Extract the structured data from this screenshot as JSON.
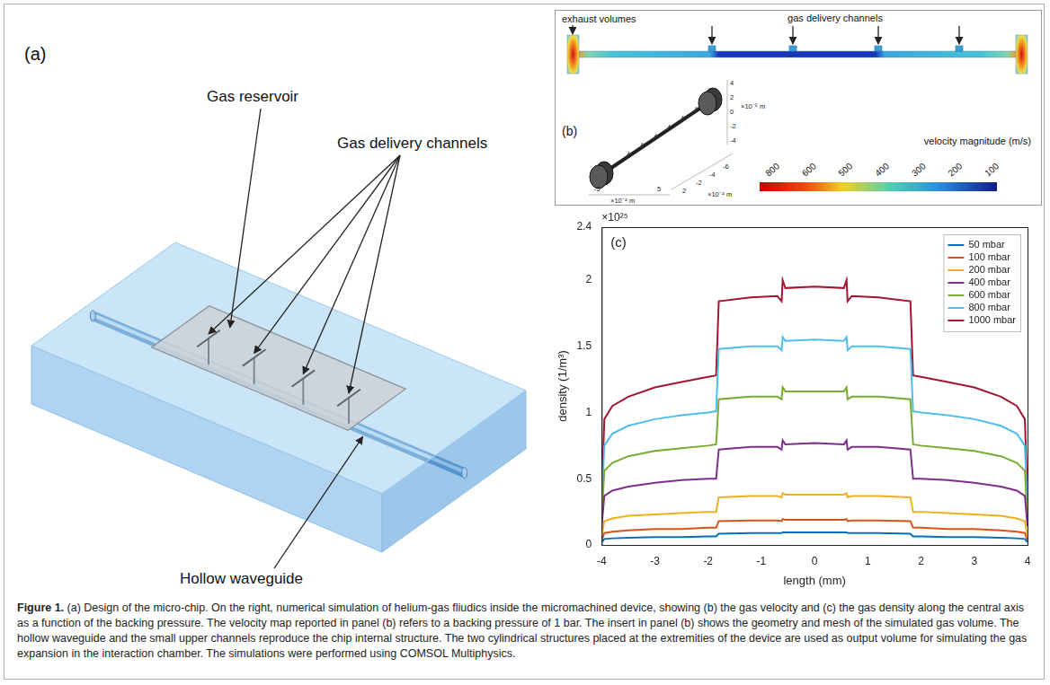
{
  "panel_a": {
    "letter": "(a)",
    "gas_reservoir": "Gas reservoir",
    "gas_delivery_channels": "Gas delivery channels",
    "hollow_waveguide": "Hollow waveguide"
  },
  "panel_b": {
    "letter": "(b)",
    "exhaust_volumes": "exhaust volumes",
    "gas_delivery_channels": "gas delivery channels",
    "colorbar": {
      "title": "velocity magnitude (m/s)",
      "ticks": [
        800,
        600,
        500,
        400,
        300,
        200,
        100
      ]
    },
    "inset": {
      "vertical_ticks": [
        "4",
        "2",
        "0",
        "-2",
        "-4"
      ],
      "vertical_unit": "×10⁻⁵ m",
      "depth_ticks": [
        "2",
        "-2",
        "-4",
        "-6"
      ],
      "depth_unit": "×10⁻⁴ m",
      "horizontal_ticks": [
        "-5",
        "5"
      ],
      "horizontal_unit": "×10⁻⁴ m"
    }
  },
  "caption": {
    "label": "Figure 1.",
    "text": "(a) Design of the micro-chip. On the right, numerical simulation of helium-gas fliudics inside the micromachined device, showing (b) the gas velocity and (c) the gas density along the central axis as a function of the backing pressure. The velocity map reported in panel (b) refers to a backing pressure of 1 bar. The insert in panel (b) shows the geometry and mesh of the simulated gas volume. The hollow waveguide and the small upper channels reproduce the chip internal structure. The two cylindrical structures placed at the extremities of the device are used as output volume for simulating the gas expansion in the interaction chamber. The simulations were performed using COMSOL Multiphysics."
  },
  "chart_data": {
    "type": "line",
    "panel_letter": "(c)",
    "x_label": "length (mm)",
    "y_label": "density (1/m³)",
    "y_multiplier": "×10²⁵",
    "x": [
      -4,
      -3.95,
      -3.8,
      -3.5,
      -3,
      -2.5,
      -2,
      -1.85,
      -1.8,
      -1.2,
      -0.7,
      -0.62,
      -0.6,
      -0.55,
      0,
      0.55,
      0.6,
      0.62,
      0.7,
      1.2,
      1.8,
      1.85,
      2,
      2.5,
      3,
      3.5,
      3.8,
      3.95,
      4
    ],
    "xlim": [
      -4,
      4
    ],
    "xticks": [
      -4,
      -3,
      -2,
      -1,
      0,
      1,
      2,
      3,
      4
    ],
    "ylim": [
      0,
      2.4
    ],
    "yticks": [
      0,
      0.5,
      1,
      1.5,
      2,
      2.4
    ],
    "grid": false,
    "legend": "upper right",
    "series": [
      {
        "name": "50 mbar",
        "color": "#0072bd",
        "values": [
          0.02,
          0.045,
          0.05,
          0.055,
          0.06,
          0.06,
          0.065,
          0.065,
          0.085,
          0.09,
          0.09,
          0.09,
          0.095,
          0.095,
          0.095,
          0.095,
          0.095,
          0.09,
          0.09,
          0.09,
          0.085,
          0.065,
          0.065,
          0.06,
          0.06,
          0.055,
          0.05,
          0.045,
          0.02
        ]
      },
      {
        "name": "100 mbar",
        "color": "#d95319",
        "values": [
          0.035,
          0.09,
          0.1,
          0.11,
          0.12,
          0.12,
          0.13,
          0.13,
          0.18,
          0.185,
          0.185,
          0.18,
          0.195,
          0.19,
          0.19,
          0.19,
          0.195,
          0.18,
          0.185,
          0.185,
          0.18,
          0.13,
          0.13,
          0.12,
          0.12,
          0.11,
          0.1,
          0.09,
          0.035
        ]
      },
      {
        "name": "200 mbar",
        "color": "#edb120",
        "values": [
          0.07,
          0.18,
          0.2,
          0.22,
          0.23,
          0.24,
          0.25,
          0.25,
          0.36,
          0.37,
          0.37,
          0.36,
          0.39,
          0.38,
          0.38,
          0.38,
          0.39,
          0.36,
          0.37,
          0.37,
          0.36,
          0.25,
          0.25,
          0.24,
          0.23,
          0.22,
          0.2,
          0.18,
          0.07
        ]
      },
      {
        "name": "400 mbar",
        "color": "#7e2f8e",
        "values": [
          0.14,
          0.37,
          0.41,
          0.44,
          0.47,
          0.49,
          0.5,
          0.5,
          0.72,
          0.74,
          0.74,
          0.72,
          0.79,
          0.76,
          0.77,
          0.76,
          0.79,
          0.72,
          0.74,
          0.74,
          0.72,
          0.5,
          0.5,
          0.49,
          0.47,
          0.44,
          0.41,
          0.37,
          0.14
        ]
      },
      {
        "name": "600 mbar",
        "color": "#77ac30",
        "values": [
          0.2,
          0.56,
          0.62,
          0.67,
          0.71,
          0.73,
          0.75,
          0.76,
          1.1,
          1.12,
          1.12,
          1.1,
          1.19,
          1.16,
          1.16,
          1.16,
          1.19,
          1.1,
          1.12,
          1.12,
          1.1,
          0.76,
          0.75,
          0.73,
          0.71,
          0.67,
          0.62,
          0.56,
          0.2
        ]
      },
      {
        "name": "800 mbar",
        "color": "#4dbeee",
        "values": [
          0.28,
          0.75,
          0.84,
          0.9,
          0.95,
          0.98,
          1.0,
          1.01,
          1.48,
          1.5,
          1.5,
          1.47,
          1.57,
          1.54,
          1.55,
          1.54,
          1.57,
          1.47,
          1.5,
          1.5,
          1.48,
          1.01,
          1.0,
          0.98,
          0.95,
          0.9,
          0.84,
          0.75,
          0.28
        ]
      },
      {
        "name": "1000 mbar",
        "color": "#a2142f",
        "values": [
          0.35,
          0.95,
          1.05,
          1.12,
          1.19,
          1.23,
          1.27,
          1.28,
          1.84,
          1.87,
          1.88,
          1.84,
          2.0,
          1.94,
          1.95,
          1.94,
          2.0,
          1.84,
          1.88,
          1.87,
          1.84,
          1.28,
          1.27,
          1.23,
          1.19,
          1.12,
          1.05,
          0.95,
          0.35
        ]
      }
    ]
  }
}
